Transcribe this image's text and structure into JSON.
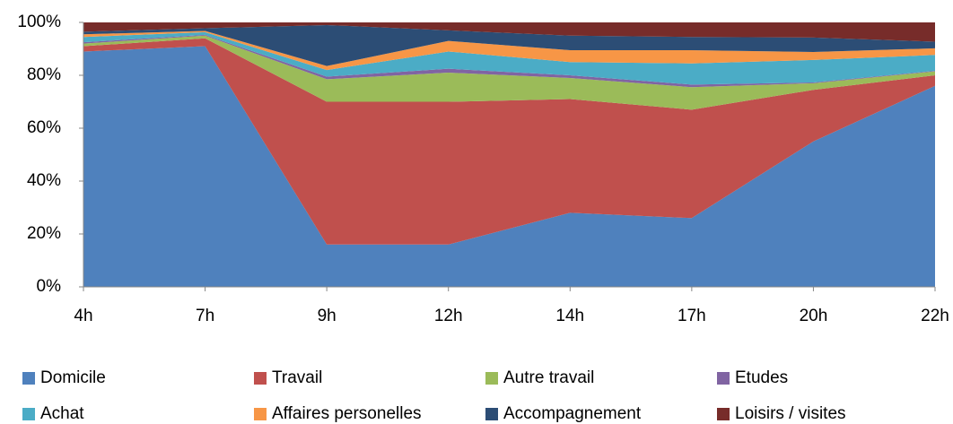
{
  "chart_data": {
    "type": "stacked_area",
    "categories": [
      "4h",
      "7h",
      "9h",
      "12h",
      "14h",
      "17h",
      "20h",
      "22h"
    ],
    "series": [
      {
        "name": "Domicile",
        "color": "#4f81bd",
        "values": [
          89,
          91,
          16,
          16,
          28,
          26,
          55,
          76
        ]
      },
      {
        "name": "Travail",
        "color": "#c0504d",
        "values": [
          2,
          3,
          54,
          54,
          43,
          41,
          19.5,
          4
        ]
      },
      {
        "name": "Autre travail",
        "color": "#9bbb59",
        "values": [
          1,
          1,
          8.5,
          11,
          8,
          8.5,
          2.5,
          1.5
        ]
      },
      {
        "name": "Etudes",
        "color": "#8064a2",
        "values": [
          0.5,
          0.3,
          1,
          1.5,
          1,
          1,
          0.3,
          0.2
        ]
      },
      {
        "name": "Achat",
        "color": "#4bacc6",
        "values": [
          2,
          1,
          2.5,
          6.5,
          5,
          8,
          8.5,
          6
        ]
      },
      {
        "name": "Affaires personelles",
        "color": "#f79646",
        "values": [
          1,
          0.5,
          1.5,
          4,
          4.5,
          5,
          3,
          2.5
        ]
      },
      {
        "name": "Accompagnement",
        "color": "#2c4d75",
        "values": [
          1,
          1,
          15.5,
          4,
          5.5,
          5,
          5.5,
          2.5
        ]
      },
      {
        "name": "Loisirs / visites",
        "color": "#772c2a",
        "values": [
          3.5,
          2.2,
          1,
          3,
          5,
          5.5,
          5.7,
          7.3
        ]
      }
    ],
    "ylim": [
      0,
      100
    ],
    "yticks": [
      {
        "value": 0,
        "label": "0%"
      },
      {
        "value": 20,
        "label": "20%"
      },
      {
        "value": 40,
        "label": "40%"
      },
      {
        "value": 60,
        "label": "60%"
      },
      {
        "value": 80,
        "label": "80%"
      },
      {
        "value": 100,
        "label": "100%"
      }
    ],
    "legend": "bottom"
  }
}
